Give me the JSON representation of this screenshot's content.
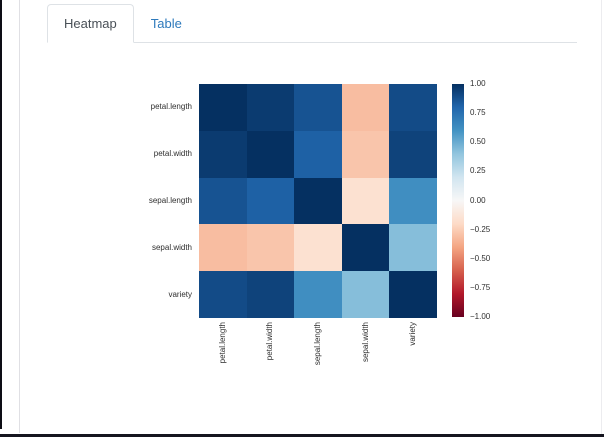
{
  "tabs": {
    "items": [
      {
        "label": "Heatmap",
        "active": true
      },
      {
        "label": "Table",
        "active": false
      }
    ]
  },
  "colors": {
    "link": "#2e7abc",
    "tab_border": "#dee2e6",
    "active_tab_text": "#495057",
    "axis_text": "#2f2f2f",
    "window_edge": "#0d0d15",
    "bottom_bar": "#15151f",
    "divider": "#e0e0e4"
  },
  "chart_data": {
    "type": "heatmap",
    "title": "",
    "labels": [
      "petal.length",
      "petal.width",
      "sepal.length",
      "sepal.width",
      "variety"
    ],
    "matrix": [
      [
        1.0,
        0.96,
        0.87,
        -0.31,
        0.9
      ],
      [
        0.96,
        1.0,
        0.82,
        -0.28,
        0.93
      ],
      [
        0.87,
        0.82,
        1.0,
        -0.16,
        0.62
      ],
      [
        -0.31,
        -0.28,
        -0.16,
        1.0,
        0.43
      ],
      [
        0.9,
        0.93,
        0.62,
        0.43,
        1.0
      ]
    ],
    "zmin": -1,
    "zmax": 1,
    "colorscale": {
      "name": "RdBu",
      "anchors": [
        "#67001f",
        "#b2182b",
        "#d6604d",
        "#f4a582",
        "#fddbc7",
        "#f7f7f7",
        "#d1e5f0",
        "#92c5de",
        "#4393c3",
        "#2166ac",
        "#053061"
      ]
    },
    "colorbar_ticks": [
      "1.00",
      "0.75",
      "0.50",
      "0.25",
      "0.00",
      "−0.25",
      "−0.50",
      "−0.75",
      "−1.00"
    ],
    "legend_position": "right",
    "grid": false
  }
}
